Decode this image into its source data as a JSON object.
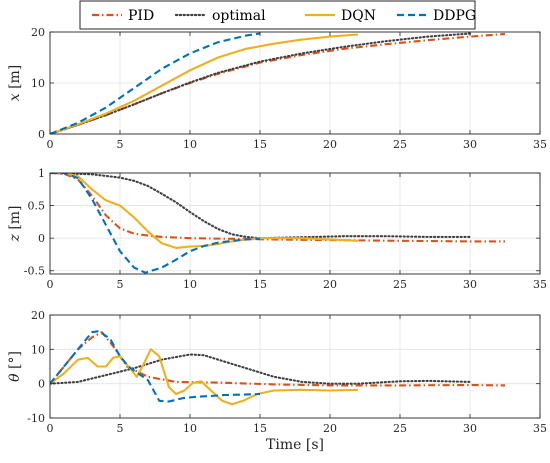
{
  "legend": {
    "entries": [
      {
        "label": "PID",
        "color": "#D95319",
        "dash": "dashdot"
      },
      {
        "label": "optimal",
        "color": "#404040",
        "dash": "dotted"
      },
      {
        "label": "DQN",
        "color": "#EDB120",
        "dash": "solid"
      },
      {
        "label": "DDPG",
        "color": "#0072BD",
        "dash": "dashed"
      }
    ],
    "placement": "top-center"
  },
  "chart_data": [
    {
      "type": "line",
      "ylabel_var": "x",
      "ylabel_unit": " [m]",
      "xlim": [
        0,
        35
      ],
      "ylim": [
        0,
        20
      ],
      "xticks": [
        0,
        5,
        10,
        15,
        20,
        25,
        30,
        35
      ],
      "yticks": [
        0,
        10,
        20
      ],
      "grid": true,
      "series": [
        {
          "name": "PID",
          "color": "#D95319",
          "dash": "dashdot",
          "points": [
            [
              0,
              0
            ],
            [
              2,
              1.8
            ],
            [
              4,
              3.7
            ],
            [
              6,
              5.8
            ],
            [
              8,
              8.0
            ],
            [
              10,
              10.0
            ],
            [
              12,
              11.8
            ],
            [
              15,
              14.0
            ],
            [
              18,
              15.5
            ],
            [
              21,
              16.7
            ],
            [
              24,
              17.6
            ],
            [
              27,
              18.4
            ],
            [
              30,
              19.1
            ],
            [
              32.5,
              19.6
            ]
          ]
        },
        {
          "name": "optimal",
          "color": "#404040",
          "dash": "dotted",
          "points": [
            [
              0,
              0
            ],
            [
              2,
              1.8
            ],
            [
              4,
              3.7
            ],
            [
              6,
              5.8
            ],
            [
              8,
              8.0
            ],
            [
              10,
              10.1
            ],
            [
              12,
              12.0
            ],
            [
              15,
              14.2
            ],
            [
              18,
              15.8
            ],
            [
              21,
              17.1
            ],
            [
              24,
              18.2
            ],
            [
              27,
              19.1
            ],
            [
              30,
              19.7
            ]
          ]
        },
        {
          "name": "DQN",
          "color": "#EDB120",
          "dash": "solid",
          "points": [
            [
              0,
              0
            ],
            [
              2,
              1.9
            ],
            [
              4,
              4.0
            ],
            [
              6,
              6.5
            ],
            [
              8,
              9.5
            ],
            [
              10,
              12.5
            ],
            [
              12,
              15.0
            ],
            [
              14,
              16.7
            ],
            [
              16,
              17.7
            ],
            [
              18,
              18.5
            ],
            [
              20,
              19.1
            ],
            [
              22,
              19.5
            ]
          ]
        },
        {
          "name": "DDPG",
          "color": "#0072BD",
          "dash": "dashed",
          "points": [
            [
              0,
              0
            ],
            [
              2,
              2.2
            ],
            [
              4,
              5.2
            ],
            [
              6,
              9.0
            ],
            [
              8,
              12.8
            ],
            [
              10,
              15.8
            ],
            [
              12,
              18.0
            ],
            [
              14,
              19.3
            ],
            [
              15,
              19.7
            ]
          ]
        }
      ]
    },
    {
      "type": "line",
      "ylabel_var": "z",
      "ylabel_unit": " [m]",
      "xlim": [
        0,
        35
      ],
      "ylim": [
        -0.55,
        1
      ],
      "xticks": [
        0,
        5,
        10,
        15,
        20,
        25,
        30,
        35
      ],
      "yticks": [
        -0.5,
        0,
        0.5,
        1
      ],
      "grid": true,
      "series": [
        {
          "name": "PID",
          "color": "#D95319",
          "dash": "dashdot",
          "points": [
            [
              0,
              1
            ],
            [
              1,
              0.99
            ],
            [
              2,
              0.9
            ],
            [
              3,
              0.65
            ],
            [
              4,
              0.35
            ],
            [
              5,
              0.15
            ],
            [
              6,
              0.07
            ],
            [
              7,
              0.04
            ],
            [
              8,
              0.02
            ],
            [
              10,
              0.0
            ],
            [
              13,
              -0.01
            ],
            [
              16,
              -0.02
            ],
            [
              20,
              -0.03
            ],
            [
              25,
              -0.04
            ],
            [
              30,
              -0.05
            ],
            [
              32.5,
              -0.05
            ]
          ]
        },
        {
          "name": "optimal",
          "color": "#404040",
          "dash": "dotted",
          "points": [
            [
              0,
              1
            ],
            [
              3,
              0.98
            ],
            [
              5,
              0.93
            ],
            [
              6,
              0.88
            ],
            [
              7,
              0.8
            ],
            [
              8,
              0.68
            ],
            [
              9,
              0.55
            ],
            [
              10,
              0.4
            ],
            [
              11,
              0.26
            ],
            [
              12,
              0.14
            ],
            [
              13,
              0.06
            ],
            [
              14,
              0.02
            ],
            [
              15,
              0.0
            ],
            [
              17,
              0.01
            ],
            [
              19,
              0.02
            ],
            [
              21,
              0.03
            ],
            [
              24,
              0.03
            ],
            [
              27,
              0.02
            ],
            [
              30,
              0.02
            ]
          ]
        },
        {
          "name": "DQN",
          "color": "#EDB120",
          "dash": "solid",
          "points": [
            [
              0,
              1
            ],
            [
              1,
              1.0
            ],
            [
              2,
              0.95
            ],
            [
              3,
              0.75
            ],
            [
              4,
              0.58
            ],
            [
              5,
              0.5
            ],
            [
              6,
              0.32
            ],
            [
              7,
              0.1
            ],
            [
              8,
              -0.08
            ],
            [
              9,
              -0.15
            ],
            [
              10,
              -0.13
            ],
            [
              11,
              -0.12
            ],
            [
              12,
              -0.09
            ],
            [
              13,
              -0.05
            ],
            [
              14,
              -0.02
            ],
            [
              15,
              0.0
            ],
            [
              18,
              0.0
            ],
            [
              22,
              -0.04
            ]
          ]
        },
        {
          "name": "DDPG",
          "color": "#0072BD",
          "dash": "dashed",
          "points": [
            [
              0,
              1
            ],
            [
              1,
              1.0
            ],
            [
              2,
              0.92
            ],
            [
              3,
              0.6
            ],
            [
              4,
              0.2
            ],
            [
              5,
              -0.2
            ],
            [
              6,
              -0.45
            ],
            [
              6.8,
              -0.53
            ],
            [
              8,
              -0.45
            ],
            [
              9,
              -0.33
            ],
            [
              10,
              -0.2
            ],
            [
              11,
              -0.12
            ],
            [
              12,
              -0.07
            ],
            [
              13,
              -0.04
            ],
            [
              14,
              -0.02
            ],
            [
              15,
              -0.01
            ]
          ]
        }
      ]
    },
    {
      "type": "line",
      "ylabel_var": "θ",
      "ylabel_unit": " [°]",
      "xlim": [
        0,
        35
      ],
      "ylim": [
        -10,
        20
      ],
      "xticks": [
        0,
        5,
        10,
        15,
        20,
        25,
        30,
        35
      ],
      "xtick_labels": [
        "0",
        "5",
        "10",
        "15",
        "20",
        "25",
        "30",
        "35"
      ],
      "yticks": [
        -10,
        0,
        10,
        20
      ],
      "xlabel": "Time [s]",
      "grid": true,
      "series": [
        {
          "name": "PID",
          "color": "#D95319",
          "dash": "dashdot",
          "points": [
            [
              0,
              0
            ],
            [
              1,
              5
            ],
            [
              2,
              10
            ],
            [
              3,
              13.5
            ],
            [
              3.7,
              15
            ],
            [
              4.5,
              11
            ],
            [
              5.5,
              5
            ],
            [
              7,
              2
            ],
            [
              9,
              0.5
            ],
            [
              12,
              0.3
            ],
            [
              16,
              -0.2
            ],
            [
              20,
              -0.5
            ],
            [
              25,
              -0.5
            ],
            [
              30,
              -0.4
            ],
            [
              32.5,
              -0.5
            ]
          ]
        },
        {
          "name": "optimal",
          "color": "#404040",
          "dash": "dotted",
          "points": [
            [
              0,
              0
            ],
            [
              2,
              0.5
            ],
            [
              4,
              2.5
            ],
            [
              6,
              4.5
            ],
            [
              8,
              7
            ],
            [
              10,
              8.5
            ],
            [
              11,
              8.3
            ],
            [
              12,
              7
            ],
            [
              14,
              4.5
            ],
            [
              16,
              2
            ],
            [
              18,
              0.5
            ],
            [
              20,
              0
            ],
            [
              22,
              0
            ],
            [
              25,
              0.7
            ],
            [
              27,
              0.8
            ],
            [
              30,
              0.5
            ]
          ]
        },
        {
          "name": "DQN",
          "color": "#EDB120",
          "dash": "solid",
          "points": [
            [
              0,
              0
            ],
            [
              1,
              3
            ],
            [
              2,
              7
            ],
            [
              2.7,
              7.5
            ],
            [
              3.4,
              5
            ],
            [
              4,
              5
            ],
            [
              4.5,
              7.5
            ],
            [
              5,
              8
            ],
            [
              5.6,
              5
            ],
            [
              6.2,
              2
            ],
            [
              6.6,
              5
            ],
            [
              7.2,
              10
            ],
            [
              7.8,
              8
            ],
            [
              8.5,
              -1
            ],
            [
              9,
              -3
            ],
            [
              9.6,
              -2
            ],
            [
              10.2,
              0.2
            ],
            [
              10.8,
              0.7
            ],
            [
              11.5,
              -2
            ],
            [
              12.3,
              -5
            ],
            [
              13,
              -6
            ],
            [
              13.8,
              -5
            ],
            [
              14.8,
              -3
            ],
            [
              16,
              -2
            ],
            [
              18,
              -1.8
            ],
            [
              20,
              -2
            ],
            [
              22,
              -1.8
            ]
          ]
        },
        {
          "name": "DDPG",
          "color": "#0072BD",
          "dash": "dashed",
          "points": [
            [
              0,
              0
            ],
            [
              1,
              5
            ],
            [
              2,
              10
            ],
            [
              3,
              15
            ],
            [
              3.5,
              15.3
            ],
            [
              4.3,
              13
            ],
            [
              5,
              8
            ],
            [
              5.6,
              5
            ],
            [
              6.3,
              3
            ],
            [
              7,
              1
            ],
            [
              7.8,
              -5
            ],
            [
              8.5,
              -5.2
            ],
            [
              9.5,
              -4.2
            ],
            [
              10.5,
              -3.8
            ],
            [
              11.5,
              -3.6
            ],
            [
              12.5,
              -3.3
            ],
            [
              13.5,
              -3.2
            ],
            [
              15,
              -3
            ]
          ]
        }
      ]
    }
  ]
}
